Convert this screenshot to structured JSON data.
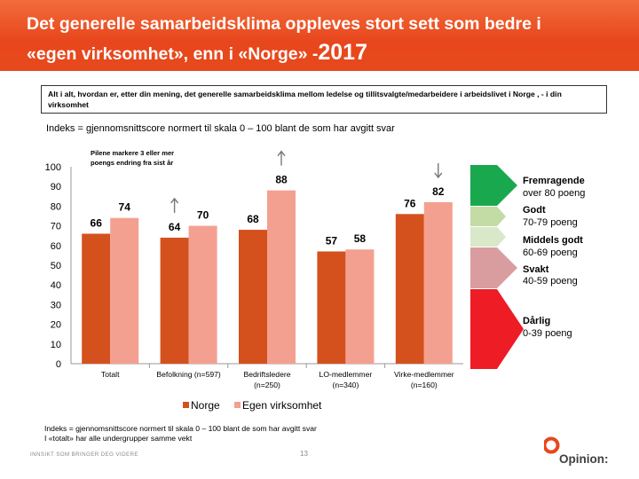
{
  "header": {
    "title_line1": "Det generelle samarbeidsklima oppleves stort sett som bedre i",
    "title_line2": "«egen virksomhet», enn i «Norge» -",
    "title_year": "2017"
  },
  "question": "Alt i alt, hvordan er, etter din mening, det generelle samarbeidsklima mellom ledelse og tillitsvalgte/medarbeidere i arbeidslivet i Norge , - i din virksomhet",
  "subtitle": "Indeks = gjennomsnittscore normert til skala  0 – 100 blant de som har avgitt svar",
  "arrow_note_line1": "Pilene markere 3 eller mer",
  "arrow_note_line2": "poengs endring fra sist år",
  "chart_data": {
    "type": "bar",
    "categories": [
      [
        "Totalt"
      ],
      [
        "Befolkning (n=597)"
      ],
      [
        "Bedriftsledere",
        "(n=250)"
      ],
      [
        "LO-medlemmer",
        "(n=340)"
      ],
      [
        "Virke-medlemmer",
        "(n=160)"
      ]
    ],
    "series": [
      {
        "name": "Norge",
        "color": "#d4511e",
        "values": [
          66,
          64,
          68,
          57,
          76
        ]
      },
      {
        "name": "Egen virksomhet",
        "color": "#f4a090",
        "values": [
          74,
          70,
          88,
          58,
          82
        ]
      }
    ],
    "ylim": [
      0,
      100
    ],
    "yticks": [
      0,
      10,
      20,
      30,
      40,
      50,
      60,
      70,
      80,
      90,
      100
    ],
    "change_arrows": [
      {
        "category": 1,
        "series": 0,
        "direction": "up"
      },
      {
        "category": 2,
        "series": 1,
        "direction": "up"
      },
      {
        "category": 4,
        "series": 1,
        "direction": "down"
      }
    ]
  },
  "scale_legend": [
    {
      "label": "Fremragende",
      "range": "over 80 poeng",
      "color": "#1aa84f"
    },
    {
      "label": "Godt",
      "range": "70-79 poeng",
      "color": "#c3dba4"
    },
    {
      "label": "Middels godt",
      "range": "60-69 poeng",
      "color": "#d8e8c8"
    },
    {
      "label": "Svakt",
      "range": "40-59 poeng",
      "color": "#d99da0"
    },
    {
      "label": "Dårlig",
      "range": "0-39 poeng",
      "color": "#ee1c25"
    }
  ],
  "footnote_line1": "Indeks = gjennomsnittscore normert til skala  0 – 100 blant de som har avgitt svar",
  "footnote_line2": "I «totalt» har alle undergrupper samme vekt",
  "tagline": "INNSIKT SOM BRINGER DEG VIDERE",
  "page_number": "13",
  "logo_text": "Opinion:"
}
